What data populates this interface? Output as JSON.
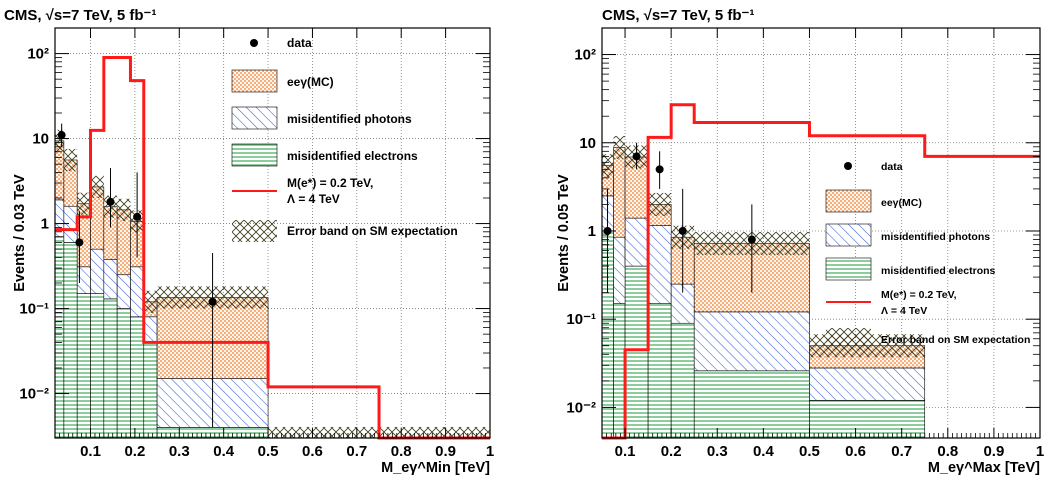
{
  "chart_data": [
    {
      "type": "bar",
      "title": "CMS, √s=7 TeV, 5 fb⁻¹",
      "xlabel": "M_eγ^Min [TeV]",
      "ylabel": "Events / 0.03 TeV",
      "log_y": true,
      "xlim": [
        0.02,
        1.0
      ],
      "ylim": [
        0.003,
        200
      ],
      "grid": true,
      "legend_position": "top-right",
      "x_ticks": [
        "0.1",
        "0.2",
        "0.3",
        "0.4",
        "0.5",
        "0.6",
        "0.7",
        "0.8",
        "0.9",
        "1"
      ],
      "y_ticks": [
        "10⁻²",
        "10⁻¹",
        "1",
        "10",
        "10²"
      ],
      "bin_edges": [
        0.02,
        0.04,
        0.07,
        0.1,
        0.13,
        0.16,
        0.19,
        0.22,
        0.25,
        0.5,
        0.75,
        1.0
      ],
      "stack": [
        {
          "name": "misidentified electrons",
          "values": [
            0.7,
            0.6,
            0.15,
            0.15,
            0.13,
            0.1,
            0.08,
            0.04,
            0.004,
            0.001,
            0.001
          ]
        },
        {
          "name": "misidentified photons",
          "values": [
            1.2,
            1.0,
            0.16,
            0.35,
            0.25,
            0.15,
            0.23,
            0.04,
            0.011,
            0.001,
            0.001
          ]
        },
        {
          "name": "eeγ(MC)",
          "values": [
            7.5,
            4.0,
            1.4,
            2.2,
            1.2,
            1.2,
            0.75,
            0.04,
            0.12,
            0.001,
            0.001
          ]
        }
      ],
      "signal": {
        "name": "M(e*) = 0.2 TeV, Λ = 4 TeV",
        "values": [
          0.85,
          0.85,
          1.2,
          12.5,
          90,
          90,
          48,
          0.04,
          0.04,
          0.012,
          0.003
        ]
      },
      "data_points": [
        {
          "x": 0.035,
          "y": 11,
          "err_lo": 8,
          "err_hi": 15
        },
        {
          "x": 0.075,
          "y": 0.6,
          "err_lo": 0.2,
          "err_hi": 1.4
        },
        {
          "x": 0.145,
          "y": 1.8,
          "err_lo": 0.9,
          "err_hi": 4.5
        },
        {
          "x": 0.205,
          "y": 1.2,
          "err_lo": 0.4,
          "err_hi": 4.0
        },
        {
          "x": 0.375,
          "y": 0.12,
          "err_lo": 0.004,
          "err_hi": 0.45
        }
      ],
      "legend": [
        "data",
        "eeγ(MC)",
        "misidentified photons",
        "misidentified electrons",
        "M(e*) = 0.2 TeV,",
        "Λ = 4 TeV",
        "Error band on SM expectation"
      ]
    },
    {
      "type": "bar",
      "title": "CMS, √s=7 TeV, 5 fb⁻¹",
      "xlabel": "M_eγ^Max [TeV]",
      "ylabel": "Events / 0.05 TeV",
      "log_y": true,
      "xlim": [
        0.05,
        1.0
      ],
      "ylim": [
        0.0045,
        200
      ],
      "grid": true,
      "legend_position": "right",
      "x_ticks": [
        "0.1",
        "0.2",
        "0.3",
        "0.4",
        "0.5",
        "0.6",
        "0.7",
        "0.8",
        "0.9",
        "1"
      ],
      "y_ticks": [
        "10⁻²",
        "10⁻¹",
        "1",
        "10",
        "10²"
      ],
      "bin_edges": [
        0.05,
        0.075,
        0.1,
        0.15,
        0.2,
        0.25,
        0.5,
        0.75,
        1.0
      ],
      "stack": [
        {
          "name": "misidentified electrons",
          "values": [
            1.0,
            0.15,
            0.4,
            0.15,
            0.09,
            0.026,
            0.012,
            0.0001
          ]
        },
        {
          "name": "misidentified photons",
          "values": [
            1.5,
            0.7,
            1.0,
            1.0,
            0.16,
            0.095,
            0.016,
            0.0001
          ]
        },
        {
          "name": "eeγ(MC)",
          "values": [
            3.0,
            8.0,
            5.5,
            0.85,
            0.6,
            0.6,
            0.022,
            0.0001
          ]
        }
      ],
      "signal": {
        "name": "M(e*) = 0.2 TeV, Λ = 4 TeV",
        "values": [
          0.001,
          0.001,
          0.045,
          11.5,
          27,
          17,
          12,
          7
        ]
      },
      "data_points": [
        {
          "x": 0.062,
          "y": 1.0,
          "err_lo": 0.2,
          "err_hi": 3.0
        },
        {
          "x": 0.125,
          "y": 7.0,
          "err_lo": 5.0,
          "err_hi": 10.0
        },
        {
          "x": 0.175,
          "y": 5.0,
          "err_lo": 3.0,
          "err_hi": 8.0
        },
        {
          "x": 0.225,
          "y": 1.0,
          "err_lo": 0.2,
          "err_hi": 3.0
        },
        {
          "x": 0.375,
          "y": 0.8,
          "err_lo": 0.2,
          "err_hi": 2.0
        }
      ],
      "legend": [
        "data",
        "eeγ(MC)",
        "misidentified photons",
        "misidentified electrons",
        "M(e*) = 0.2 TeV,",
        "Λ = 4 TeV",
        "Error band on SM expectation"
      ]
    }
  ],
  "colors": {
    "mc_orange": "#f07a2a",
    "photon_blue": "#3a5fd8",
    "electron_green": "#1e9a3e",
    "signal_red": "#ff1a1a",
    "band_olive": "#3b3a18"
  }
}
